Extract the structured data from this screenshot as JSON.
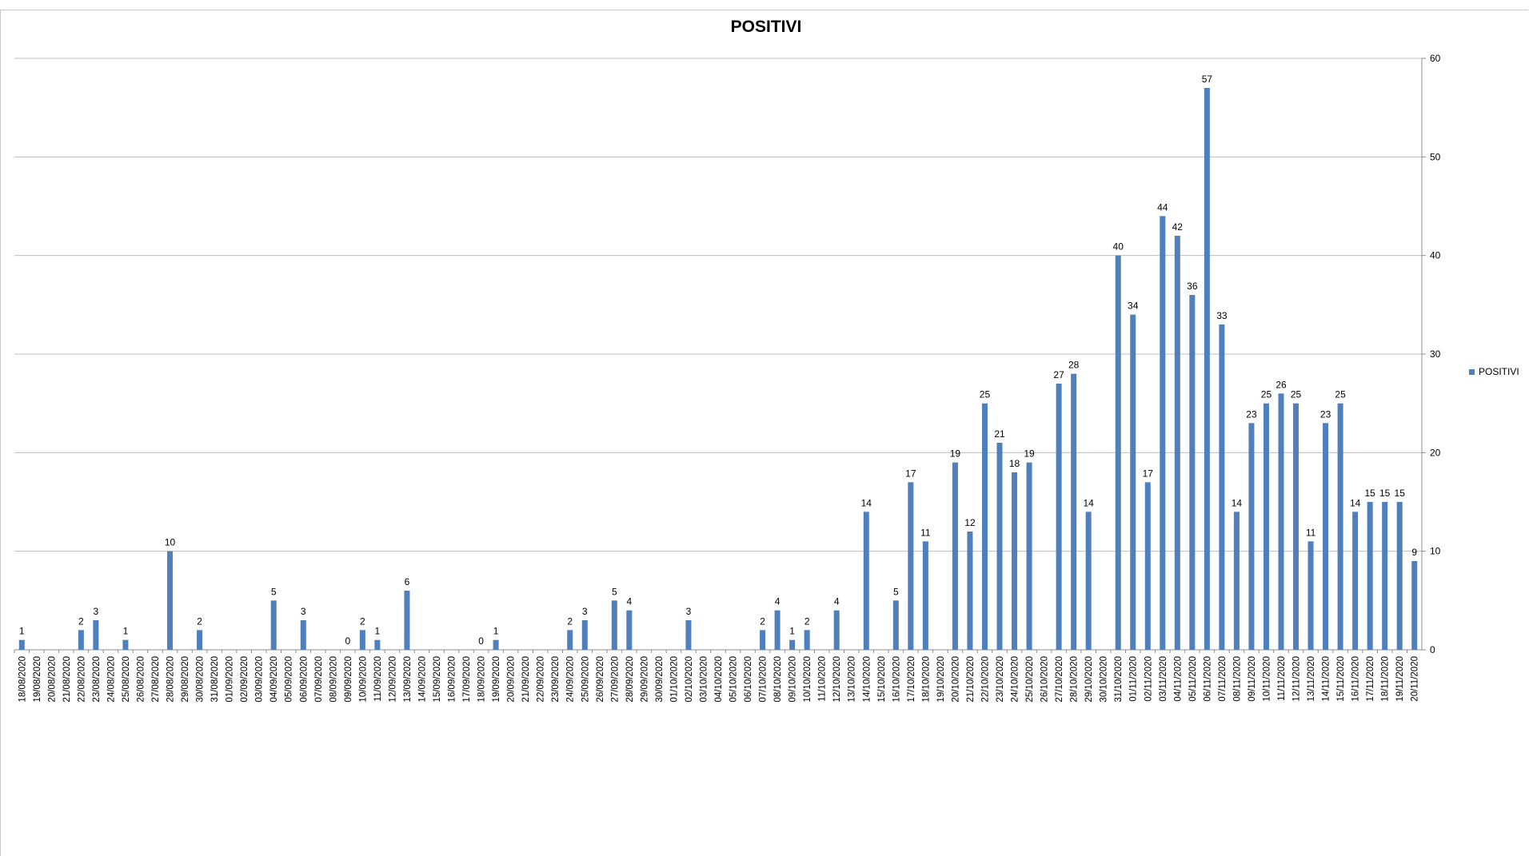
{
  "chart_data": {
    "type": "bar",
    "title": "POSITIVI",
    "legend": "right",
    "grid": true,
    "y_axis_side": "right",
    "ylim": [
      0,
      60
    ],
    "yticks": [
      0,
      10,
      20,
      30,
      40,
      50,
      60
    ],
    "colors": {
      "bar": "#4f7fbd",
      "grid": "#bdbdbd",
      "axis": "#8c8c8c"
    },
    "categories": [
      "18/08/2020",
      "19/08/2020",
      "20/08/2020",
      "21/08/2020",
      "22/08/2020",
      "23/08/2020",
      "24/08/2020",
      "25/08/2020",
      "26/08/2020",
      "27/08/2020",
      "28/08/2020",
      "29/08/2020",
      "30/08/2020",
      "31/08/2020",
      "01/09/2020",
      "02/09/2020",
      "03/09/2020",
      "04/09/2020",
      "05/09/2020",
      "06/09/2020",
      "07/09/2020",
      "08/09/2020",
      "09/09/2020",
      "10/09/2020",
      "11/09/2020",
      "12/09/2020",
      "13/09/2020",
      "14/09/2020",
      "15/09/2020",
      "16/09/2020",
      "17/09/2020",
      "18/09/2020",
      "19/09/2020",
      "20/09/2020",
      "21/09/2020",
      "22/09/2020",
      "23/09/2020",
      "24/09/2020",
      "25/09/2020",
      "26/09/2020",
      "27/09/2020",
      "28/09/2020",
      "29/09/2020",
      "30/09/2020",
      "01/10/2020",
      "02/10/2020",
      "03/10/2020",
      "04/10/2020",
      "05/10/2020",
      "06/10/2020",
      "07/10/2020",
      "08/10/2020",
      "09/10/2020",
      "10/10/2020",
      "11/10/2020",
      "12/10/2020",
      "13/10/2020",
      "14/10/2020",
      "15/10/2020",
      "16/10/2020",
      "17/10/2020",
      "18/10/2020",
      "19/10/2020",
      "20/10/2020",
      "21/10/2020",
      "22/10/2020",
      "23/10/2020",
      "24/10/2020",
      "25/10/2020",
      "26/10/2020",
      "27/10/2020",
      "28/10/2020",
      "29/10/2020",
      "30/10/2020",
      "31/10/2020",
      "01/11/2020",
      "02/11/2020",
      "03/11/2020",
      "04/11/2020",
      "05/11/2020",
      "06/11/2020",
      "07/11/2020",
      "08/11/2020",
      "09/11/2020",
      "10/11/2020",
      "11/11/2020",
      "12/11/2020",
      "13/11/2020",
      "14/11/2020",
      "15/11/2020",
      "16/11/2020",
      "17/11/2020",
      "18/11/2020",
      "19/11/2020",
      "20/11/2020"
    ],
    "series": [
      {
        "name": "POSITIVI",
        "values": [
          1,
          null,
          null,
          null,
          2,
          3,
          null,
          1,
          null,
          null,
          10,
          null,
          2,
          null,
          null,
          null,
          null,
          5,
          null,
          3,
          null,
          null,
          0,
          2,
          1,
          null,
          6,
          null,
          null,
          null,
          null,
          0,
          1,
          null,
          null,
          null,
          null,
          2,
          3,
          null,
          5,
          4,
          null,
          null,
          null,
          3,
          null,
          null,
          null,
          null,
          2,
          4,
          1,
          2,
          null,
          4,
          null,
          14,
          null,
          5,
          17,
          11,
          null,
          19,
          12,
          25,
          21,
          18,
          19,
          null,
          27,
          28,
          14,
          null,
          40,
          34,
          17,
          44,
          42,
          36,
          57,
          33,
          14,
          23,
          25,
          26,
          25,
          11,
          23,
          25,
          14,
          15,
          15,
          15,
          9
        ]
      }
    ]
  }
}
